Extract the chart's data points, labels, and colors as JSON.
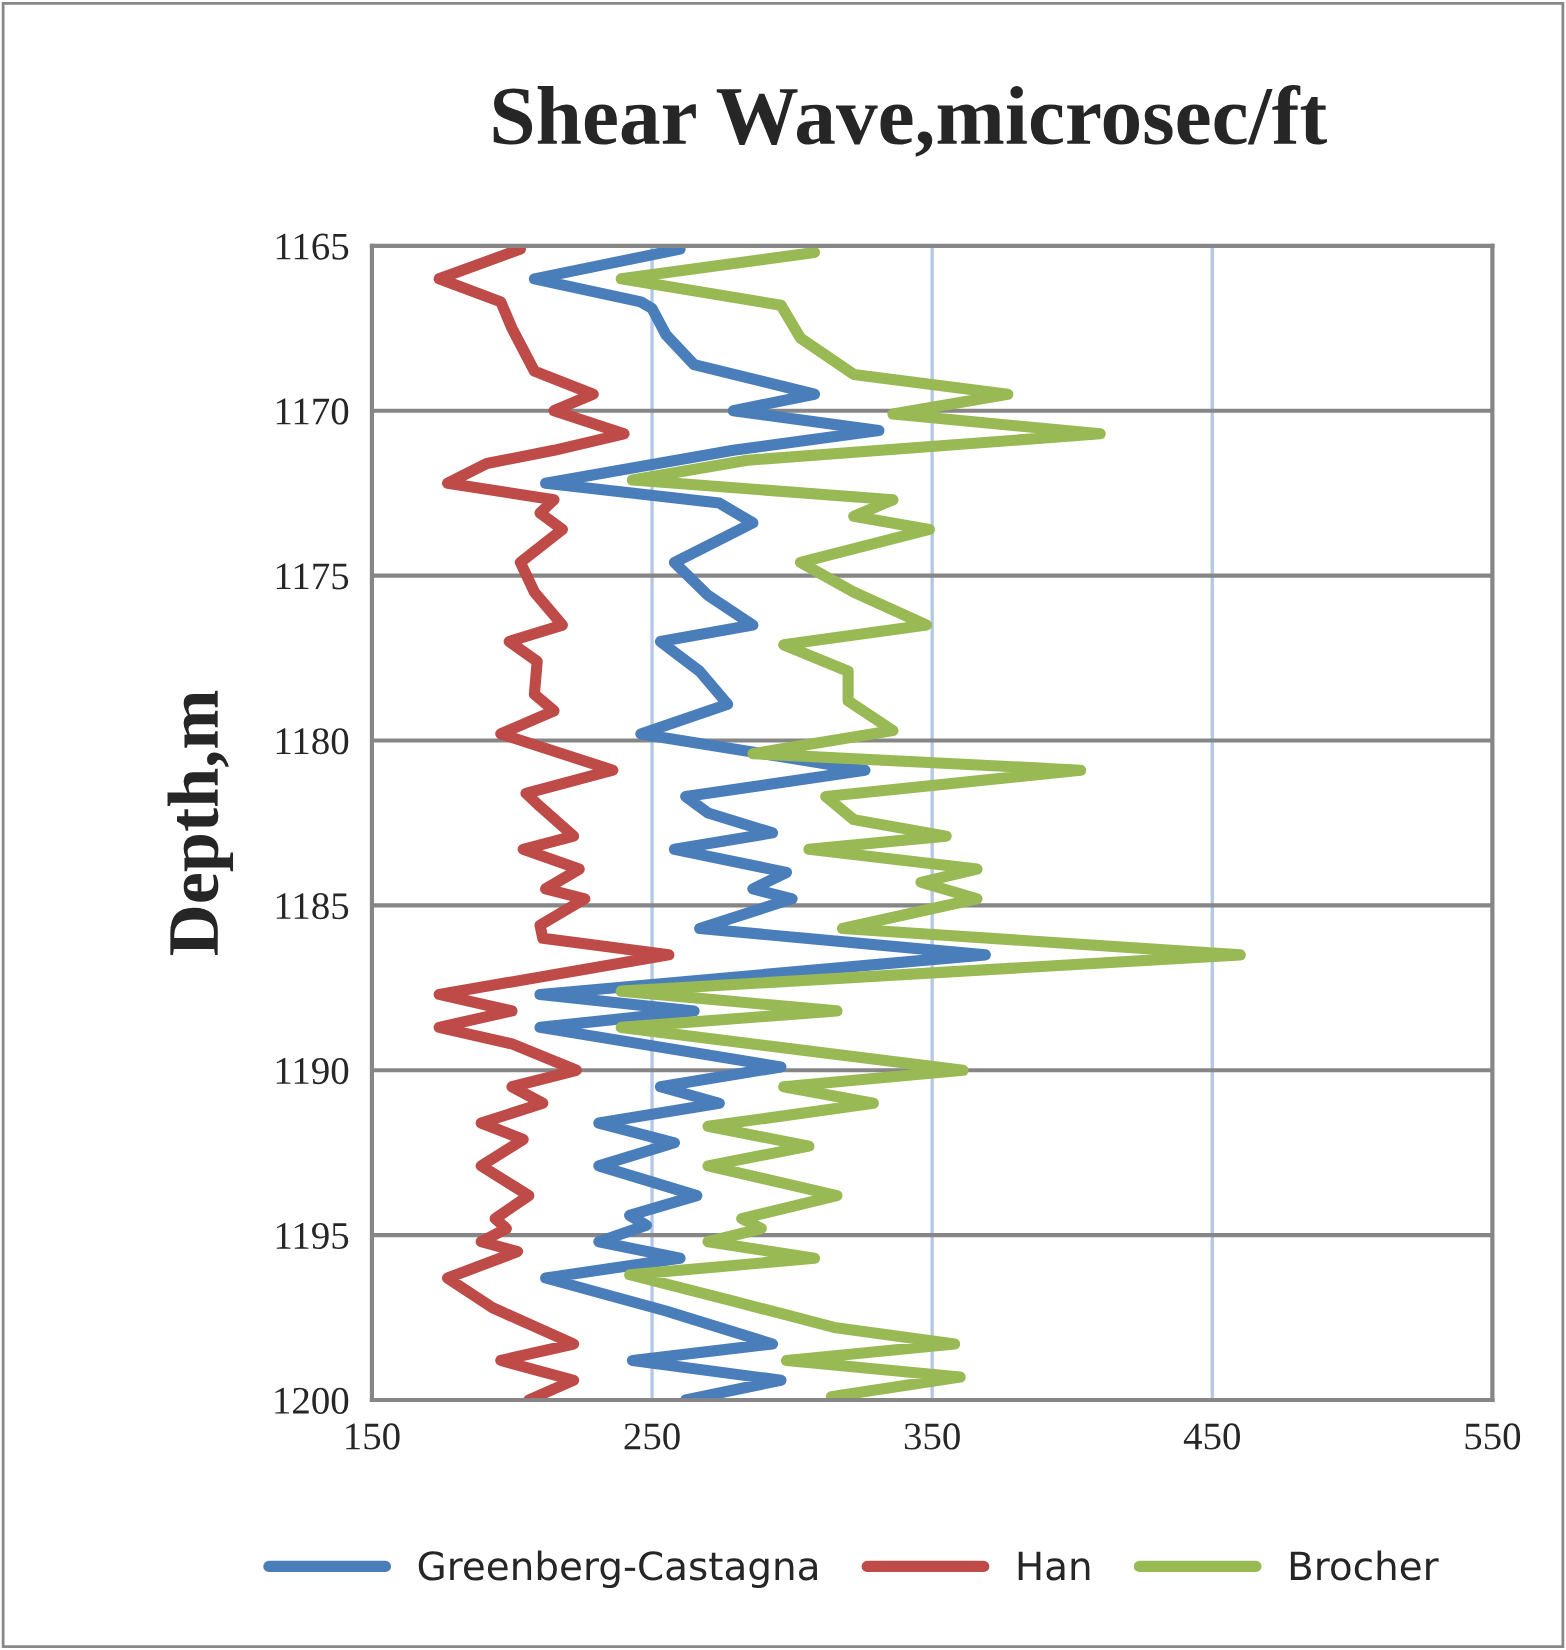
{
  "chart_data": {
    "type": "line",
    "orientation": "horizontal",
    "title": "Shear Wave,microsec/ft",
    "ylabel": "Depth,m",
    "xlim": [
      150,
      550
    ],
    "xticks": [
      150,
      250,
      350,
      450,
      550
    ],
    "ylim": [
      1200,
      1165
    ],
    "yticks": [
      1165,
      1170,
      1175,
      1180,
      1185,
      1190,
      1195,
      1200
    ],
    "grid": true,
    "legend": "bottom",
    "marker": "none",
    "line_style": "solid",
    "series": [
      {
        "name": "Greenberg-Castagna",
        "color": "#4a7ebb",
        "x": [
          1165.1,
          1166.0,
          1166.7,
          1166.9,
          1167.7,
          1168.6,
          1169.5,
          1170.0,
          1170.6,
          1171.2,
          1172.2,
          1172.8,
          1173.4,
          1174.6,
          1175.6,
          1176.5,
          1177.0,
          1177.9,
          1178.9,
          1179.8,
          1180.9,
          1181.7,
          1182.2,
          1182.8,
          1183.3,
          1184.0,
          1184.5,
          1184.8,
          1185.7,
          1186.5,
          1187.7,
          1188.2,
          1188.7,
          1189.9,
          1190.5,
          1191.0,
          1191.6,
          1192.2,
          1192.9,
          1193.8,
          1194.4,
          1194.7,
          1195.2,
          1195.7,
          1196.3,
          1197.3,
          1198.3,
          1198.8,
          1199.4,
          1200.0
        ],
        "values": [
          260,
          208,
          246,
          250,
          255,
          265,
          308,
          279,
          331,
          279,
          212,
          274,
          286,
          258,
          270,
          286,
          253,
          267,
          277,
          246,
          326,
          262,
          270,
          293,
          258,
          298,
          286,
          300,
          267,
          369,
          210,
          265,
          210,
          296,
          253,
          274,
          231,
          258,
          231,
          266,
          242,
          248,
          231,
          260,
          212,
          255,
          293,
          243,
          296,
          262
        ]
      },
      {
        "name": "Han",
        "color": "#be4b48",
        "x": [
          1165.1,
          1166.0,
          1166.7,
          1167.5,
          1168.8,
          1169.5,
          1170.0,
          1170.7,
          1171.2,
          1171.6,
          1172.2,
          1172.7,
          1173.1,
          1173.6,
          1174.6,
          1175.5,
          1176.5,
          1177.0,
          1177.6,
          1178.6,
          1179.1,
          1179.8,
          1180.9,
          1181.6,
          1182.0,
          1182.9,
          1183.3,
          1183.9,
          1184.5,
          1184.8,
          1185.6,
          1186.0,
          1186.5,
          1187.7,
          1188.2,
          1188.7,
          1189.2,
          1190.0,
          1190.5,
          1191.0,
          1191.6,
          1192.1,
          1192.9,
          1193.8,
          1194.5,
          1194.8,
          1195.2,
          1195.5,
          1196.3,
          1197.2,
          1198.3,
          1198.8,
          1199.4,
          1200.0
        ],
        "values": [
          203,
          174,
          196,
          200,
          208,
          229,
          215,
          240,
          215,
          191,
          177,
          215,
          210,
          218,
          203,
          208,
          218,
          199,
          209,
          208,
          215,
          196,
          236,
          205,
          210,
          222,
          204,
          224,
          212,
          226,
          210,
          211,
          256,
          174,
          200,
          174,
          200,
          223,
          200,
          211,
          189,
          204,
          189,
          206,
          194,
          198,
          189,
          202,
          177,
          193,
          222,
          196,
          222,
          206
        ]
      },
      {
        "name": "Brocher",
        "color": "#98b954",
        "x": [
          1165.2,
          1166.0,
          1166.8,
          1167.8,
          1168.9,
          1169.5,
          1170.1,
          1170.7,
          1171.5,
          1172.1,
          1172.7,
          1173.2,
          1173.6,
          1174.6,
          1175.5,
          1176.5,
          1177.1,
          1177.9,
          1178.8,
          1179.7,
          1180.4,
          1180.9,
          1181.7,
          1182.4,
          1182.9,
          1183.3,
          1183.9,
          1184.3,
          1184.8,
          1185.7,
          1186.5,
          1187.6,
          1188.2,
          1188.7,
          1190.0,
          1190.5,
          1191.0,
          1191.7,
          1192.3,
          1192.9,
          1193.8,
          1194.5,
          1194.8,
          1195.2,
          1195.7,
          1196.2,
          1197.0,
          1197.8,
          1198.3,
          1198.8,
          1199.3,
          1199.9
        ],
        "values": [
          308,
          239,
          296,
          303,
          322,
          377,
          336,
          410,
          284,
          243,
          336,
          322,
          349,
          303,
          322,
          348,
          297,
          320,
          320,
          336,
          286,
          403,
          312,
          322,
          355,
          306,
          366,
          346,
          366,
          318,
          460,
          239,
          316,
          239,
          361,
          297,
          329,
          270,
          306,
          270,
          316,
          282,
          289,
          270,
          308,
          242,
          279,
          315,
          358,
          298,
          360,
          314
        ]
      }
    ]
  }
}
